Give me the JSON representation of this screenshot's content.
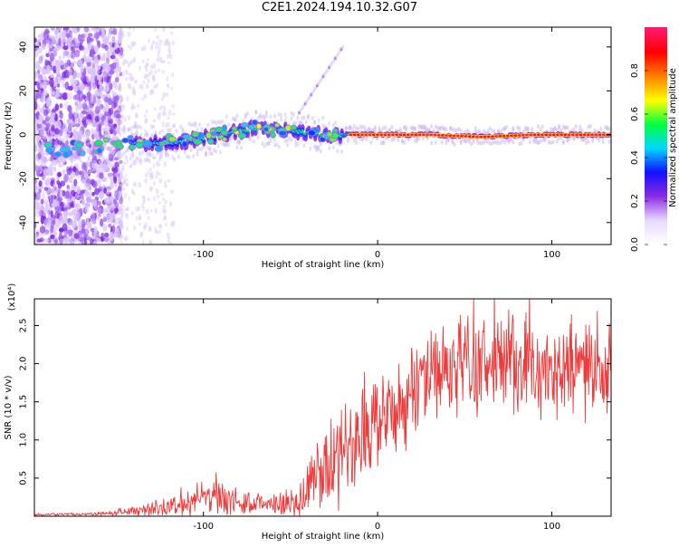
{
  "title": "C2E1.2024.194.10.32.G07",
  "chart_data": [
    {
      "type": "heatmap",
      "xlabel": "Height of straight line (km)",
      "ylabel": "Frequency (Hz)",
      "xlim": [
        -197,
        134
      ],
      "ylim": [
        -50,
        49
      ],
      "xticks": [
        -100,
        0,
        100
      ],
      "yticks": [
        -40,
        -20,
        0,
        20,
        40
      ],
      "colorbar": {
        "label": "Normalized spectral amplitude",
        "range": [
          0,
          1
        ],
        "ticks": [
          "0.0",
          "0.2",
          "0.4",
          "0.6",
          "0.8"
        ],
        "colors": [
          "#ffffff",
          "#e8d8ff",
          "#8a2be2",
          "#1010ff",
          "#00d8ff",
          "#00ff40",
          "#ffff00",
          "#ff8000",
          "#ff0000",
          "#ff1a6e"
        ]
      },
      "ridge": [
        {
          "x": -190,
          "f": -7,
          "amp": 0.3
        },
        {
          "x": -170,
          "f": -6,
          "amp": 0.35
        },
        {
          "x": -150,
          "f": -4,
          "amp": 0.4
        },
        {
          "x": -130,
          "f": -4,
          "amp": 0.45
        },
        {
          "x": -110,
          "f": -3,
          "amp": 0.5
        },
        {
          "x": -90,
          "f": 0,
          "amp": 0.5
        },
        {
          "x": -70,
          "f": 3,
          "amp": 0.55
        },
        {
          "x": -50,
          "f": 2,
          "amp": 0.5
        },
        {
          "x": -30,
          "f": 0,
          "amp": 0.55
        },
        {
          "x": -20,
          "f": 0,
          "amp": 0.5
        },
        {
          "x": 0,
          "f": 0,
          "amp": 0.85
        },
        {
          "x": 30,
          "f": 0,
          "amp": 0.9
        },
        {
          "x": 60,
          "f": -1,
          "amp": 0.75
        },
        {
          "x": 90,
          "f": 0,
          "amp": 0.8
        },
        {
          "x": 134,
          "f": 0,
          "amp": 0.85
        }
      ]
    },
    {
      "type": "line",
      "xlabel": "Height of straight line (km)",
      "ylabel": "SNR (10 * v/v)",
      "y_multiplier": "(x10⁴)",
      "xlim": [
        -197,
        134
      ],
      "ylim": [
        0,
        2.85
      ],
      "xticks": [
        -100,
        0,
        100
      ],
      "yticks": [
        0.5,
        1.0,
        1.5,
        2.0,
        2.5
      ],
      "color": "#ee3a3a",
      "envelope": [
        {
          "x": -197,
          "mean": 0.02,
          "spread": 0.01
        },
        {
          "x": -160,
          "mean": 0.03,
          "spread": 0.02
        },
        {
          "x": -140,
          "mean": 0.07,
          "spread": 0.05
        },
        {
          "x": -120,
          "mean": 0.12,
          "spread": 0.1
        },
        {
          "x": -100,
          "mean": 0.2,
          "spread": 0.2
        },
        {
          "x": -80,
          "mean": 0.2,
          "spread": 0.15
        },
        {
          "x": -60,
          "mean": 0.12,
          "spread": 0.08
        },
        {
          "x": -45,
          "mean": 0.25,
          "spread": 0.25
        },
        {
          "x": -30,
          "mean": 0.6,
          "spread": 0.5
        },
        {
          "x": -15,
          "mean": 1.0,
          "spread": 0.55
        },
        {
          "x": 0,
          "mean": 1.2,
          "spread": 0.45
        },
        {
          "x": 15,
          "mean": 1.5,
          "spread": 0.5
        },
        {
          "x": 30,
          "mean": 1.85,
          "spread": 0.5
        },
        {
          "x": 50,
          "mean": 2.0,
          "spread": 0.5
        },
        {
          "x": 80,
          "mean": 1.95,
          "spread": 0.5
        },
        {
          "x": 110,
          "mean": 1.9,
          "spread": 0.45
        },
        {
          "x": 134,
          "mean": 1.85,
          "spread": 0.45
        }
      ]
    }
  ]
}
